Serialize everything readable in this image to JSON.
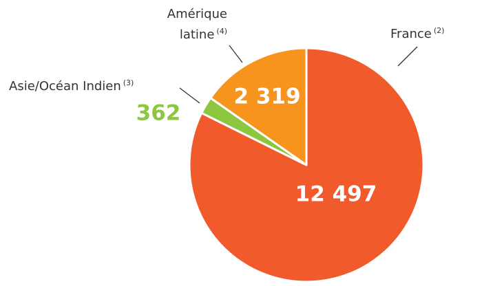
{
  "chart_data": {
    "type": "pie",
    "categories": [
      "France",
      "Asie/Océan Indien",
      "Amérique latine"
    ],
    "footnotes": [
      "(2)",
      "(3)",
      "(4)"
    ],
    "values": [
      12497,
      362,
      2319
    ],
    "value_labels": [
      "12 497",
      "362",
      "2 319"
    ],
    "colors": [
      "#f15a2b",
      "#8dc63f",
      "#f7941d"
    ]
  }
}
